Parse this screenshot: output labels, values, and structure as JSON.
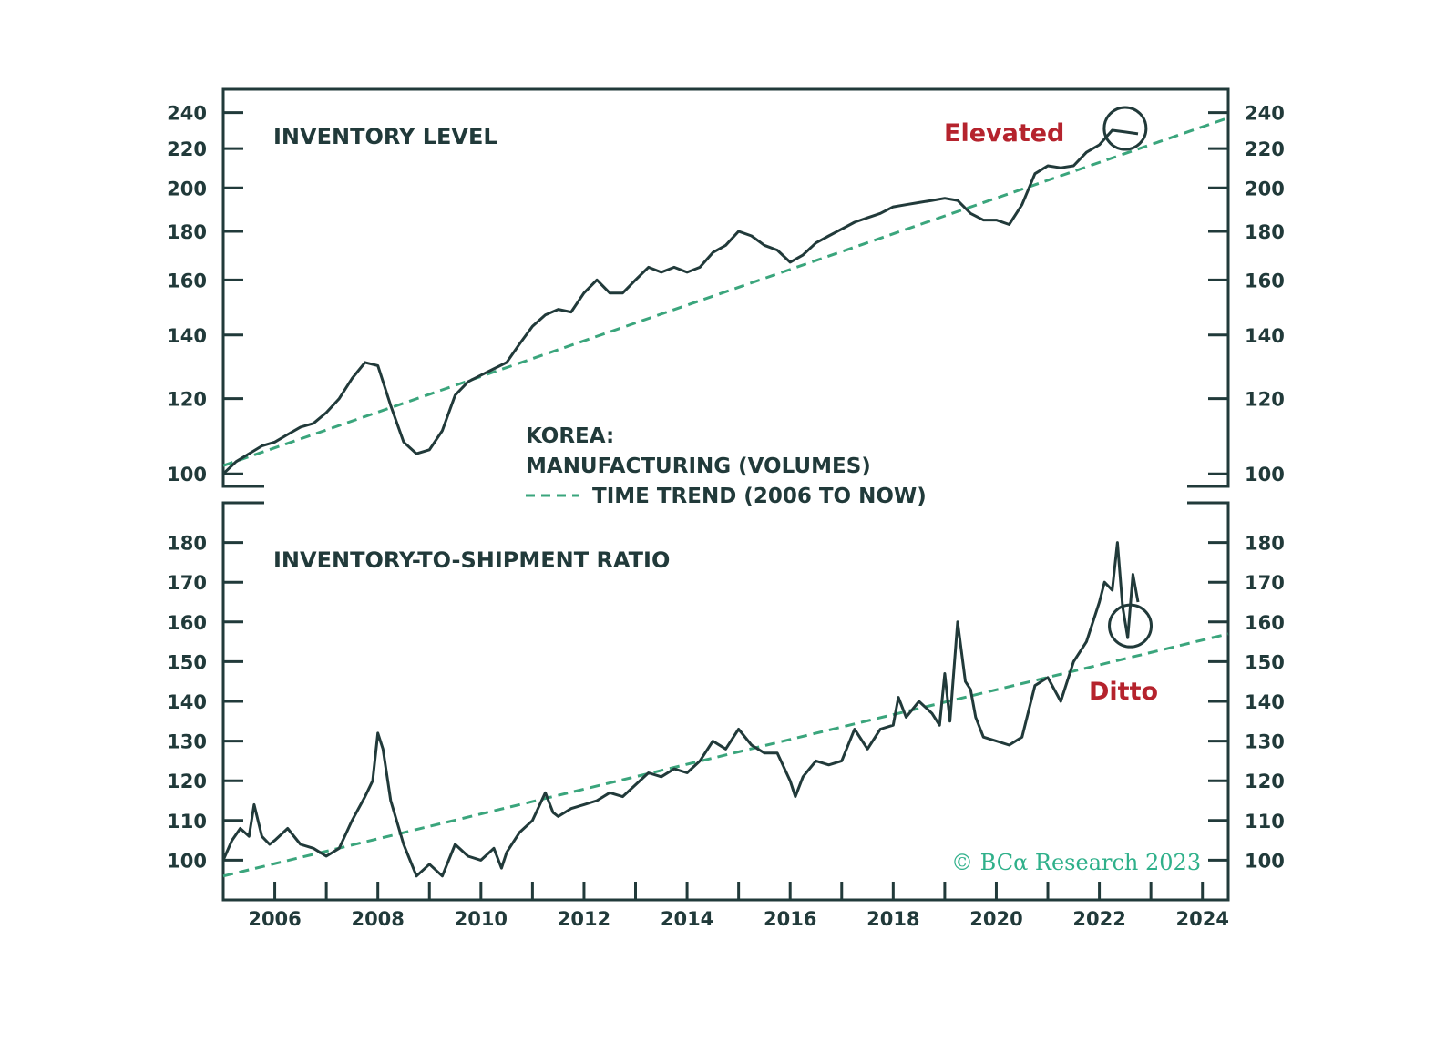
{
  "colors": {
    "frame": "#213a3a",
    "series": "#213a3a",
    "trend": "#3aa57c",
    "callout": "#b5232d",
    "watermark": "#2fb08a"
  },
  "legend": {
    "title": "KOREA:",
    "series_label": "MANUFACTURING (VOLUMES)",
    "trend_label": "TIME TREND (2006 TO NOW)"
  },
  "watermark": "© BCα Research 2023",
  "chart_data": [
    {
      "type": "line",
      "title": "INVENTORY LEVEL",
      "yscale": "log",
      "ylim": [
        97,
        254
      ],
      "yticks": [
        100,
        120,
        140,
        160,
        180,
        200,
        220,
        240
      ],
      "xlim": [
        2005.0,
        2024.5
      ],
      "xticks": [
        2006,
        2008,
        2010,
        2012,
        2014,
        2016,
        2018,
        2020,
        2022,
        2024
      ],
      "annotation": {
        "text": "Elevated",
        "marker": "circle",
        "at": [
          2022.5,
          231
        ]
      },
      "series": [
        {
          "name": "MANUFACTURING (VOLUMES)",
          "style": "solid",
          "x": [
            2005.0,
            2005.25,
            2005.5,
            2005.75,
            2006.0,
            2006.25,
            2006.5,
            2006.75,
            2007.0,
            2007.25,
            2007.5,
            2007.75,
            2008.0,
            2008.25,
            2008.5,
            2008.75,
            2009.0,
            2009.25,
            2009.5,
            2009.75,
            2010.0,
            2010.25,
            2010.5,
            2010.75,
            2011.0,
            2011.25,
            2011.5,
            2011.75,
            2012.0,
            2012.25,
            2012.5,
            2012.75,
            2013.0,
            2013.25,
            2013.5,
            2013.75,
            2014.0,
            2014.25,
            2014.5,
            2014.75,
            2015.0,
            2015.25,
            2015.5,
            2015.75,
            2016.0,
            2016.25,
            2016.5,
            2016.75,
            2017.0,
            2017.25,
            2017.5,
            2017.75,
            2018.0,
            2018.25,
            2018.5,
            2018.75,
            2019.0,
            2019.25,
            2019.5,
            2019.75,
            2020.0,
            2020.25,
            2020.5,
            2020.75,
            2021.0,
            2021.25,
            2021.5,
            2021.75,
            2022.0,
            2022.25,
            2022.5,
            2022.75
          ],
          "values": [
            100,
            103,
            105,
            107,
            108,
            110,
            112,
            113,
            116,
            120,
            126,
            131,
            130,
            118,
            108,
            105,
            106,
            111,
            121,
            125,
            127,
            129,
            131,
            137,
            143,
            147,
            149,
            148,
            155,
            160,
            155,
            155,
            160,
            165,
            163,
            165,
            163,
            165,
            171,
            174,
            180,
            178,
            174,
            172,
            167,
            170,
            175,
            178,
            181,
            184,
            186,
            188,
            191,
            192,
            193,
            194,
            195,
            194,
            188,
            185,
            185,
            183,
            192,
            207,
            211,
            210,
            211,
            218,
            222,
            230,
            229,
            228
          ]
        },
        {
          "name": "TIME TREND (2006 TO NOW)",
          "style": "dashed",
          "x": [
            2005.0,
            2024.5
          ],
          "values": [
            102,
            237
          ]
        }
      ]
    },
    {
      "type": "line",
      "title": "INVENTORY-TO-SHIPMENT RATIO",
      "yscale": "linear",
      "ylim": [
        90,
        190
      ],
      "yticks": [
        100,
        110,
        120,
        130,
        140,
        150,
        160,
        170,
        180
      ],
      "xlim": [
        2005.0,
        2024.5
      ],
      "xticks": [
        2006,
        2008,
        2010,
        2012,
        2014,
        2016,
        2018,
        2020,
        2022,
        2024
      ],
      "annotation": {
        "text": "Ditto",
        "marker": "circle",
        "at": [
          2022.6,
          159
        ]
      },
      "series": [
        {
          "name": "MANUFACTURING (VOLUMES)",
          "style": "solid",
          "x": [
            2005.0,
            2005.17,
            2005.33,
            2005.5,
            2005.6,
            2005.75,
            2005.9,
            2006.0,
            2006.25,
            2006.5,
            2006.75,
            2007.0,
            2007.25,
            2007.5,
            2007.75,
            2007.9,
            2008.0,
            2008.1,
            2008.25,
            2008.5,
            2008.75,
            2009.0,
            2009.25,
            2009.5,
            2009.75,
            2010.0,
            2010.25,
            2010.4,
            2010.5,
            2010.75,
            2011.0,
            2011.25,
            2011.4,
            2011.5,
            2011.75,
            2012.0,
            2012.25,
            2012.5,
            2012.75,
            2013.0,
            2013.25,
            2013.5,
            2013.75,
            2014.0,
            2014.25,
            2014.5,
            2014.75,
            2015.0,
            2015.25,
            2015.5,
            2015.75,
            2016.0,
            2016.1,
            2016.25,
            2016.5,
            2016.75,
            2017.0,
            2017.25,
            2017.5,
            2017.75,
            2018.0,
            2018.1,
            2018.25,
            2018.5,
            2018.75,
            2018.9,
            2019.0,
            2019.1,
            2019.25,
            2019.4,
            2019.5,
            2019.6,
            2019.75,
            2020.0,
            2020.25,
            2020.5,
            2020.75,
            2021.0,
            2021.25,
            2021.5,
            2021.75,
            2022.0,
            2022.1,
            2022.25,
            2022.35,
            2022.45,
            2022.55,
            2022.65,
            2022.75
          ],
          "values": [
            100,
            105,
            108,
            106,
            114,
            106,
            104,
            105,
            108,
            104,
            103,
            101,
            103,
            110,
            116,
            120,
            132,
            128,
            115,
            104,
            96,
            99,
            96,
            104,
            101,
            100,
            103,
            98,
            102,
            107,
            110,
            117,
            112,
            111,
            113,
            114,
            115,
            117,
            116,
            119,
            122,
            121,
            123,
            122,
            125,
            130,
            128,
            133,
            129,
            127,
            127,
            120,
            116,
            121,
            125,
            124,
            125,
            133,
            128,
            133,
            134,
            141,
            136,
            140,
            137,
            134,
            147,
            135,
            160,
            145,
            143,
            136,
            131,
            130,
            129,
            131,
            144,
            146,
            140,
            150,
            155,
            165,
            170,
            168,
            180,
            164,
            156,
            172,
            165
          ]
        },
        {
          "name": "TIME TREND (2006 TO NOW)",
          "style": "dashed",
          "x": [
            2005.0,
            2024.5
          ],
          "values": [
            96,
            157
          ]
        }
      ]
    }
  ]
}
